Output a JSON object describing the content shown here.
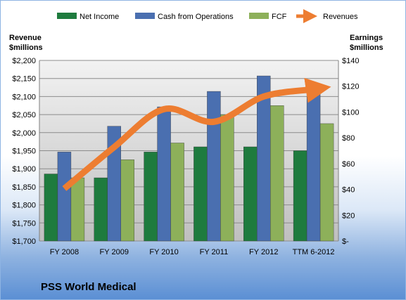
{
  "chart_data": {
    "type": "bar",
    "company": "PSS World Medical",
    "categories": [
      "FY 2008",
      "FY 2009",
      "FY 2010",
      "FY 2011",
      "FY 2012",
      "TTM 6-2012"
    ],
    "left_axis": {
      "title_line1": "Revenue",
      "title_line2": "$millions",
      "min": 1700,
      "max": 2200,
      "step": 50,
      "tick_labels": [
        "$1,700",
        "$1,750",
        "$1,800",
        "$1,850",
        "$1,900",
        "$1,950",
        "$2,000",
        "$2,050",
        "$2,100",
        "$2,150",
        "$2,200"
      ]
    },
    "right_axis": {
      "title_line1": "Earnings",
      "title_line2": "$millions",
      "min": 0,
      "max": 140,
      "step": 20,
      "tick_labels": [
        "$-",
        "$20",
        "$40",
        "$60",
        "$80",
        "$100",
        "$120",
        "$140"
      ]
    },
    "series": [
      {
        "name": "Net Income",
        "type": "bar",
        "axis": "right",
        "color": "#1e7b3e",
        "values": [
          52,
          49,
          69,
          73,
          73,
          70
        ]
      },
      {
        "name": "Cash from Operations",
        "type": "bar",
        "axis": "right",
        "color": "#4a6fb0",
        "values": [
          69,
          89,
          104,
          116,
          128,
          116
        ]
      },
      {
        "name": "FCF",
        "type": "bar",
        "axis": "right",
        "color": "#8db05a",
        "values": [
          49,
          63,
          76,
          98,
          105,
          91
        ]
      },
      {
        "name": "Revenues",
        "type": "line",
        "axis": "left",
        "color": "#ed7d31",
        "values": [
          1845,
          1960,
          2065,
          2030,
          2100,
          2120
        ]
      }
    ],
    "grid": true,
    "legend_position": "top"
  }
}
